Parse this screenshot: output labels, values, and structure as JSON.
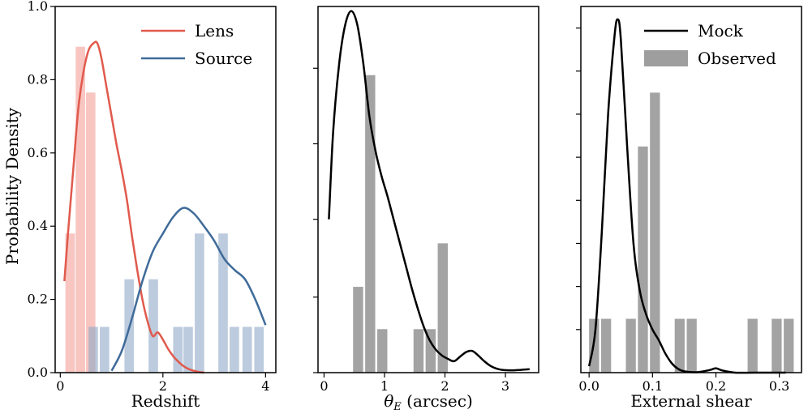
{
  "figure": {
    "ylabel": "Probability Density"
  },
  "chart_data": [
    {
      "type": "bar",
      "panel": "redshift",
      "xlabel": "Redshift",
      "ylabel": "Probability Density",
      "xlim": [
        -0.1,
        4.2
      ],
      "ylim": [
        0,
        1.0
      ],
      "xticks": [
        0,
        2,
        4
      ],
      "yticks": [
        0.0,
        0.2,
        0.4,
        0.6,
        0.8,
        1.0
      ],
      "ytick_labels": [
        "0.0",
        "0.2",
        "0.4",
        "0.6",
        "0.8",
        "1.0"
      ],
      "legend": {
        "position": "top-right",
        "entries": [
          "Lens",
          "Source"
        ]
      },
      "histograms": [
        {
          "name": "Lens (observed)",
          "color": "#f4a6a0",
          "opacity": 0.65,
          "bin_width": 0.2,
          "bin_left_edges": [
            0.1,
            0.3,
            0.5
          ],
          "values": [
            0.38,
            0.89,
            0.765
          ]
        },
        {
          "name": "Source (observed)",
          "color": "#8fa9c7",
          "opacity": 0.6,
          "bin_width": 0.2,
          "bin_left_edges": [
            0.55,
            0.77,
            1.25,
            1.72,
            2.2,
            2.4,
            2.62,
            3.08,
            3.3,
            3.55,
            3.78
          ],
          "values": [
            0.125,
            0.125,
            0.255,
            0.255,
            0.125,
            0.125,
            0.38,
            0.38,
            0.125,
            0.125,
            0.125
          ]
        }
      ],
      "series": [
        {
          "name": "Lens",
          "color": "#e05a4d",
          "x": [
            0.08,
            0.15,
            0.25,
            0.35,
            0.45,
            0.55,
            0.65,
            0.72,
            0.8,
            0.9,
            1.0,
            1.1,
            1.2,
            1.3,
            1.4,
            1.5,
            1.6,
            1.7,
            1.8,
            1.9,
            2.0,
            2.1,
            2.2,
            2.3,
            2.4,
            2.5,
            2.6,
            2.7,
            2.8
          ],
          "y": [
            0.25,
            0.38,
            0.55,
            0.72,
            0.82,
            0.88,
            0.9,
            0.9,
            0.86,
            0.78,
            0.7,
            0.62,
            0.55,
            0.47,
            0.37,
            0.28,
            0.2,
            0.14,
            0.1,
            0.11,
            0.09,
            0.065,
            0.045,
            0.03,
            0.018,
            0.01,
            0.005,
            0.002,
            0.0
          ]
        },
        {
          "name": "Source",
          "color": "#3f6b99",
          "x": [
            1.0,
            1.2,
            1.4,
            1.6,
            1.8,
            2.0,
            2.2,
            2.4,
            2.6,
            2.8,
            3.0,
            3.2,
            3.4,
            3.6,
            3.8,
            4.0
          ],
          "y": [
            0.005,
            0.06,
            0.15,
            0.25,
            0.33,
            0.38,
            0.425,
            0.45,
            0.435,
            0.4,
            0.36,
            0.31,
            0.28,
            0.255,
            0.2,
            0.13
          ]
        }
      ]
    },
    {
      "type": "bar",
      "panel": "einstein-radius",
      "xlabel": "θ_E (arcsec)",
      "xlim": [
        -0.1,
        3.55
      ],
      "ylim": [
        0,
        1.6
      ],
      "xticks": [
        0,
        1,
        2,
        3
      ],
      "yticks": [
        0.0,
        0.33,
        0.67,
        1.0,
        1.33
      ],
      "legend": null,
      "histograms": [
        {
          "name": "Observed",
          "color": "#9e9e9e",
          "opacity": 0.95,
          "bin_width": 0.18,
          "bin_left_edges": [
            0.48,
            0.68,
            0.88,
            1.48,
            1.68,
            1.88
          ],
          "values": [
            0.375,
            1.3,
            0.19,
            0.19,
            0.19,
            0.565
          ]
        }
      ],
      "series": [
        {
          "name": "Mock",
          "color": "#000000",
          "x": [
            0.08,
            0.15,
            0.25,
            0.35,
            0.45,
            0.55,
            0.65,
            0.75,
            0.85,
            0.95,
            1.05,
            1.15,
            1.25,
            1.35,
            1.45,
            1.55,
            1.65,
            1.75,
            1.85,
            1.95,
            2.05,
            2.15,
            2.25,
            2.35,
            2.45,
            2.55,
            2.65,
            2.75,
            2.85,
            2.95,
            3.1,
            3.25,
            3.4
          ],
          "y": [
            0.67,
            1.05,
            1.35,
            1.52,
            1.58,
            1.52,
            1.35,
            1.12,
            0.97,
            0.86,
            0.77,
            0.67,
            0.57,
            0.47,
            0.37,
            0.28,
            0.2,
            0.14,
            0.1,
            0.075,
            0.06,
            0.05,
            0.07,
            0.09,
            0.095,
            0.075,
            0.05,
            0.03,
            0.018,
            0.012,
            0.01,
            0.012,
            0.015
          ]
        }
      ]
    },
    {
      "type": "bar",
      "panel": "external-shear",
      "xlabel": "External shear",
      "xlim": [
        -0.013,
        0.335
      ],
      "ylim": [
        0,
        17.0
      ],
      "xticks": [
        0.0,
        0.1,
        0.2,
        0.3
      ],
      "xtick_labels": [
        "0.0",
        "0.1",
        "0.2",
        "0.3"
      ],
      "yticks": [
        2,
        4,
        6,
        8,
        10,
        12,
        14,
        16
      ],
      "legend": {
        "position": "top-right",
        "entries": [
          "Mock",
          "Observed"
        ]
      },
      "histograms": [
        {
          "name": "Observed",
          "color": "#9e9e9e",
          "opacity": 0.95,
          "bin_width": 0.017,
          "bin_left_edges": [
            0.0,
            0.019,
            0.058,
            0.077,
            0.096,
            0.135,
            0.154,
            0.25,
            0.288,
            0.307
          ],
          "values": [
            2.5,
            2.5,
            2.5,
            10.5,
            13.0,
            2.5,
            2.5,
            2.5,
            2.5,
            2.5
          ]
        }
      ],
      "series": [
        {
          "name": "Mock",
          "color": "#000000",
          "x": [
            0.0,
            0.01,
            0.02,
            0.03,
            0.04,
            0.045,
            0.05,
            0.06,
            0.07,
            0.08,
            0.09,
            0.1,
            0.11,
            0.12,
            0.13,
            0.14,
            0.15,
            0.17,
            0.19,
            0.2,
            0.21,
            0.23,
            0.26,
            0.29,
            0.31
          ],
          "y": [
            0.3,
            2.0,
            6.5,
            12.0,
            15.6,
            16.4,
            15.5,
            10.5,
            6.0,
            3.8,
            2.7,
            2.0,
            1.5,
            0.9,
            0.45,
            0.18,
            0.06,
            0.02,
            0.12,
            0.2,
            0.1,
            0.0,
            0.0,
            0.0,
            0.0
          ]
        }
      ]
    }
  ]
}
